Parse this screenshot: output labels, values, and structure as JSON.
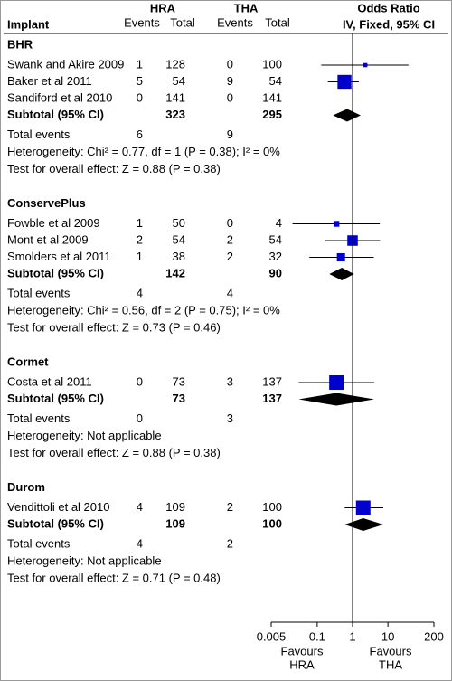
{
  "chart_data": {
    "type": "forest",
    "header": {
      "implant": "Implant",
      "hra": "HRA",
      "tha": "THA",
      "events_hra": "Events",
      "total_hra": "Total",
      "events_tha": "Events",
      "total_tha": "Total",
      "or_title": "Odds Ratio",
      "method": "IV, Fixed, 95% CI"
    },
    "xlim": [
      0.005,
      200
    ],
    "xticks": [
      0.005,
      0.1,
      1,
      10,
      200
    ],
    "log_scale": true,
    "favours_left": [
      "Favours",
      "HRA"
    ],
    "favours_right": [
      "Favours",
      "THA"
    ],
    "box_color": "#0000cc",
    "diamond_color": "#000000",
    "groups": [
      {
        "name": "BHR",
        "studies": [
          {
            "name": "Swank and Akire 2009",
            "events_hra": 1,
            "total_hra": 128,
            "events_tha": 0,
            "total_tha": 100,
            "or": 2.3,
            "ci": [
              0.13,
              38
            ],
            "weight": 8
          },
          {
            "name": "Baker et al 2011",
            "events_hra": 5,
            "total_hra": 54,
            "events_tha": 9,
            "total_tha": 54,
            "or": 0.59,
            "ci": [
              0.2,
              1.5
            ],
            "weight": 92
          },
          {
            "name": "Sandiford et al 2010",
            "events_hra": 0,
            "total_hra": 141,
            "events_tha": 0,
            "total_tha": 141,
            "or": null,
            "ci": null,
            "weight": null
          }
        ],
        "subtotal": {
          "label": "Subtotal (95% CI)",
          "total_hra": 323,
          "total_tha": 295,
          "or": 0.7,
          "ci": [
            0.28,
            1.7
          ]
        },
        "total_events": {
          "label": "Total events",
          "hra": 6,
          "tha": 9
        },
        "heterogeneity": "Heterogeneity: Chi² = 0.77, df = 1 (P = 0.38); I² = 0%",
        "overall_effect": "Test for overall effect: Z = 0.88 (P = 0.38)"
      },
      {
        "name": "ConservePlus",
        "studies": [
          {
            "name": "Fowble et al 2009",
            "events_hra": 1,
            "total_hra": 50,
            "events_tha": 0,
            "total_tha": 4,
            "or": 0.35,
            "ci": [
              0.02,
              5.9
            ],
            "weight": 16
          },
          {
            "name": "Mont et al 2009",
            "events_hra": 2,
            "total_hra": 54,
            "events_tha": 2,
            "total_tha": 54,
            "or": 1.0,
            "ci": [
              0.17,
              6
            ],
            "weight": 52
          },
          {
            "name": "Smolders et al 2011",
            "events_hra": 1,
            "total_hra": 38,
            "events_tha": 2,
            "total_tha": 32,
            "or": 0.47,
            "ci": [
              0.06,
              4
            ],
            "weight": 32
          }
        ],
        "subtotal": {
          "label": "Subtotal (95% CI)",
          "total_hra": 142,
          "total_tha": 90,
          "or": 0.5,
          "ci": [
            0.22,
            1.1
          ]
        },
        "total_events": {
          "label": "Total events",
          "hra": 4,
          "tha": 4
        },
        "heterogeneity": "Heterogeneity: Chi² = 0.56, df = 2 (P = 0.75); I² = 0%",
        "overall_effect": "Test for overall effect: Z = 0.73 (P = 0.46)"
      },
      {
        "name": "Cormet",
        "studies": [
          {
            "name": "Costa et al 2011",
            "events_hra": 0,
            "total_hra": 73,
            "events_tha": 3,
            "total_tha": 137,
            "or": 0.35,
            "ci": [
              0.03,
              4.1
            ],
            "weight": 100
          }
        ],
        "subtotal": {
          "label": "Subtotal (95% CI)",
          "total_hra": 73,
          "total_tha": 137,
          "or": 0.35,
          "ci": [
            0.03,
            4.1
          ]
        },
        "total_events": {
          "label": "Total events",
          "hra": 0,
          "tha": 3
        },
        "heterogeneity": "Heterogeneity: Not applicable",
        "overall_effect": "Test for overall effect: Z = 0.88 (P = 0.38)"
      },
      {
        "name": "Durom",
        "studies": [
          {
            "name": "Vendittoli et al 2010",
            "events_hra": 4,
            "total_hra": 109,
            "events_tha": 2,
            "total_tha": 100,
            "or": 2.0,
            "ci": [
              0.6,
              7.4
            ],
            "weight": 100
          }
        ],
        "subtotal": {
          "label": "Subtotal (95% CI)",
          "total_hra": 109,
          "total_tha": 100,
          "or": 2.0,
          "ci": [
            0.6,
            7.4
          ]
        },
        "total_events": {
          "label": "Total events",
          "hra": 4,
          "tha": 2
        },
        "heterogeneity": "Heterogeneity: Not applicable",
        "overall_effect": "Test for overall effect: Z = 0.71 (P = 0.48)"
      }
    ]
  }
}
